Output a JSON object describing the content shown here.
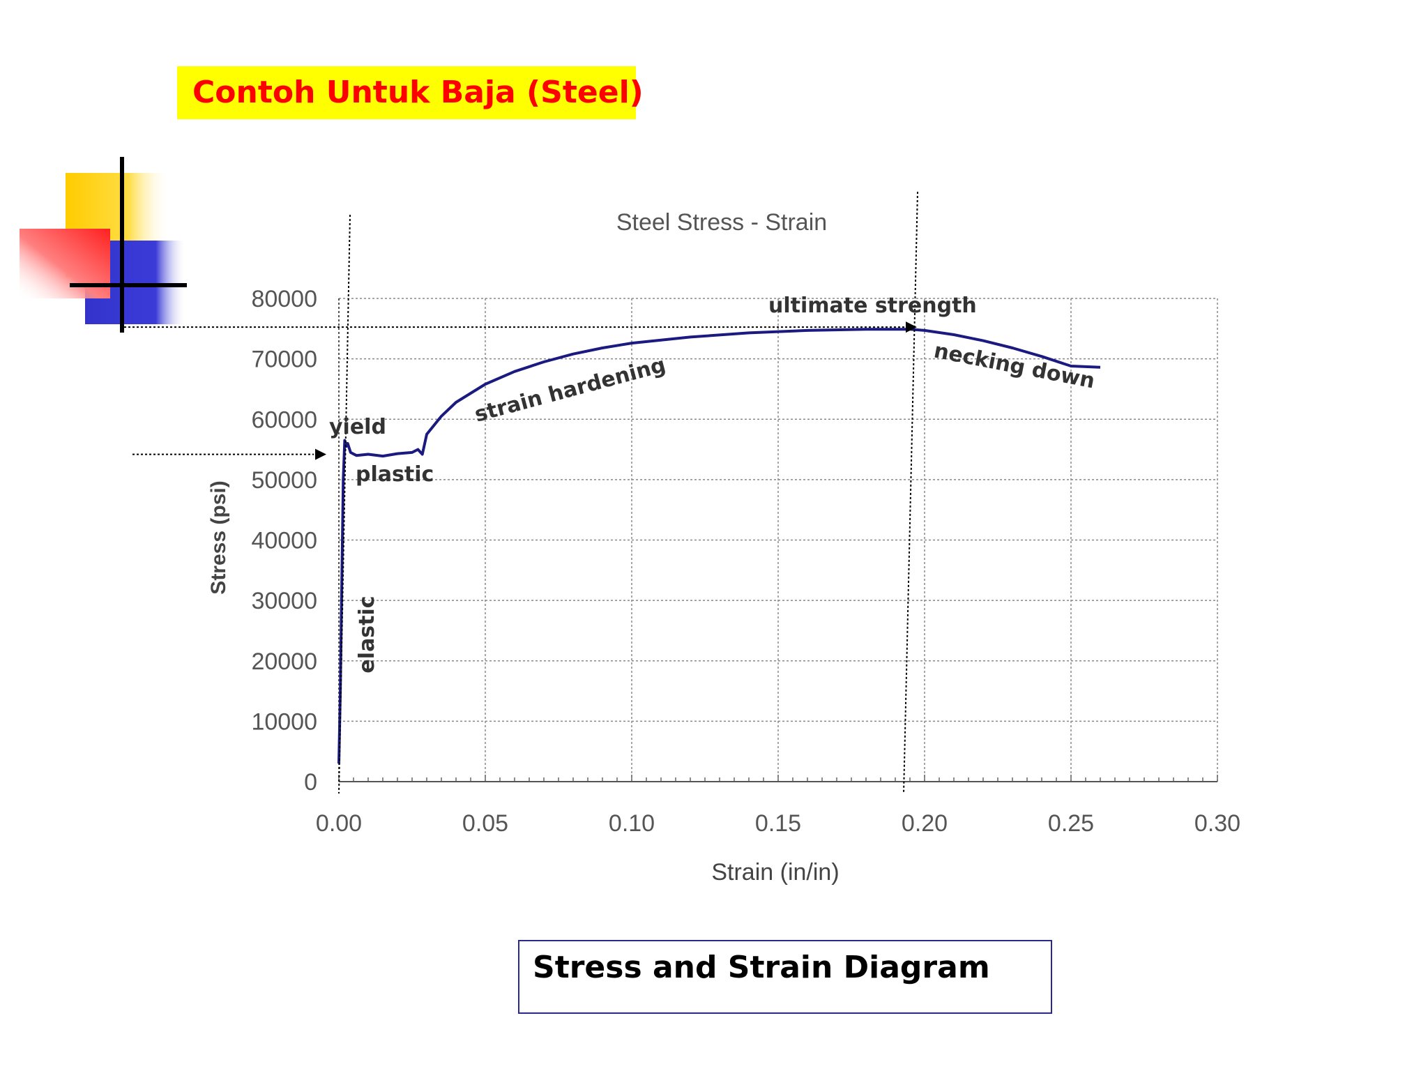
{
  "slide": {
    "heading": "Contoh Untuk Baja (Steel)",
    "caption": "Stress and Strain Diagram",
    "colors": {
      "heading_bg": "#ffff00",
      "heading_text": "#ff0000",
      "curve": "#1a1a80",
      "caption_border": "#2a2a8a"
    }
  },
  "chart_data": {
    "type": "line",
    "title": "Steel Stress - Strain",
    "xlabel": "Strain (in/in)",
    "ylabel": "Stress (psi)",
    "xlim": [
      0,
      0.3
    ],
    "ylim": [
      0,
      80000
    ],
    "xticks": [
      "0.00",
      "0.05",
      "0.10",
      "0.15",
      "0.20",
      "0.25",
      "0.30"
    ],
    "yticks": [
      "0",
      "10000",
      "20000",
      "30000",
      "40000",
      "50000",
      "60000",
      "70000",
      "80000"
    ],
    "grid": true,
    "series": [
      {
        "x": [
          0.0,
          0.0005,
          0.001,
          0.0015,
          0.002,
          0.0025,
          0.003,
          0.004,
          0.006,
          0.01,
          0.015,
          0.02,
          0.025,
          0.027,
          0.0285,
          0.03,
          0.035,
          0.04,
          0.05,
          0.06,
          0.07,
          0.08,
          0.09,
          0.1,
          0.12,
          0.14,
          0.16,
          0.18,
          0.195,
          0.2,
          0.21,
          0.22,
          0.23,
          0.24,
          0.25,
          0.255,
          0.26
        ],
        "y": [
          3000,
          15000,
          33000,
          50000,
          56500,
          55500,
          56000,
          54500,
          54000,
          54200,
          53900,
          54300,
          54500,
          55000,
          54200,
          57500,
          60500,
          62800,
          65800,
          67900,
          69500,
          70800,
          71800,
          72600,
          73600,
          74300,
          74700,
          74900,
          74900,
          74700,
          74000,
          73000,
          71800,
          70400,
          68800,
          68700,
          68600
        ]
      }
    ],
    "annotations": [
      {
        "text": "yield",
        "x": 0.0025,
        "y": 56500
      },
      {
        "text": "plastic",
        "x": 0.015,
        "y": 50000
      },
      {
        "text": "elastic",
        "x": 0.005,
        "y": 30000
      },
      {
        "text": "strain hardening",
        "x": 0.07,
        "y": 64000
      },
      {
        "text": "ultimate strength",
        "x": 0.195,
        "y": 74900
      },
      {
        "text": "necking down",
        "x": 0.225,
        "y": 70000
      }
    ]
  }
}
